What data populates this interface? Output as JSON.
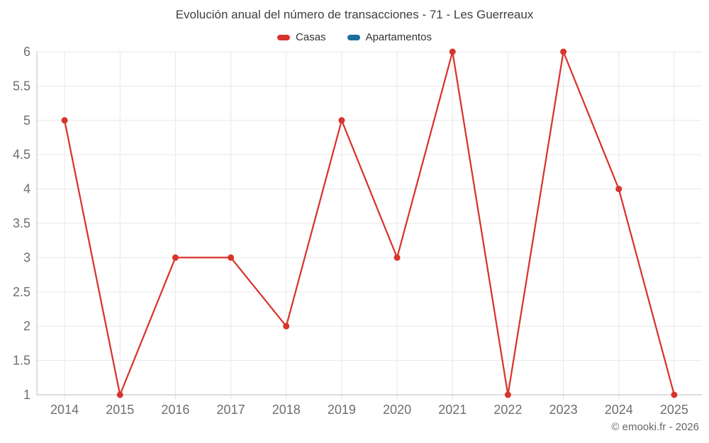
{
  "title": "Evolución anual del número de transacciones - 71 - Les Guerreaux",
  "footer": "© emooki.fr - 2026",
  "colors": {
    "background": "#ffffff",
    "casas": "#d8342c",
    "apartamentos": "#1c6e9c",
    "grid": "#e7e7e7",
    "axis": "#bdbdbd",
    "tick": "#dddddd",
    "title_text": "#3f3f3f",
    "legend_text": "#333333",
    "axis_label_text": "#6e6e6e",
    "footer_text": "#666666"
  },
  "chart_data": {
    "type": "line",
    "title": "Evolución anual del número de transacciones - 71 - Les Guerreaux",
    "categories": [
      "2014",
      "2015",
      "2016",
      "2017",
      "2018",
      "2019",
      "2020",
      "2021",
      "2022",
      "2023",
      "2024",
      "2025"
    ],
    "series": [
      {
        "name": "Casas",
        "color": "#d8342c",
        "values": [
          5,
          1,
          3,
          3,
          2,
          5,
          3,
          6,
          1,
          6,
          4,
          1
        ]
      },
      {
        "name": "Apartamentos",
        "color": "#1c6e9c",
        "values": []
      }
    ],
    "xlabel": "",
    "ylabel": "",
    "ylim": [
      1,
      6
    ],
    "ytick_step": 0.5,
    "grid": true,
    "legend_position": "top",
    "annotation": "© emooki.fr - 2026"
  }
}
